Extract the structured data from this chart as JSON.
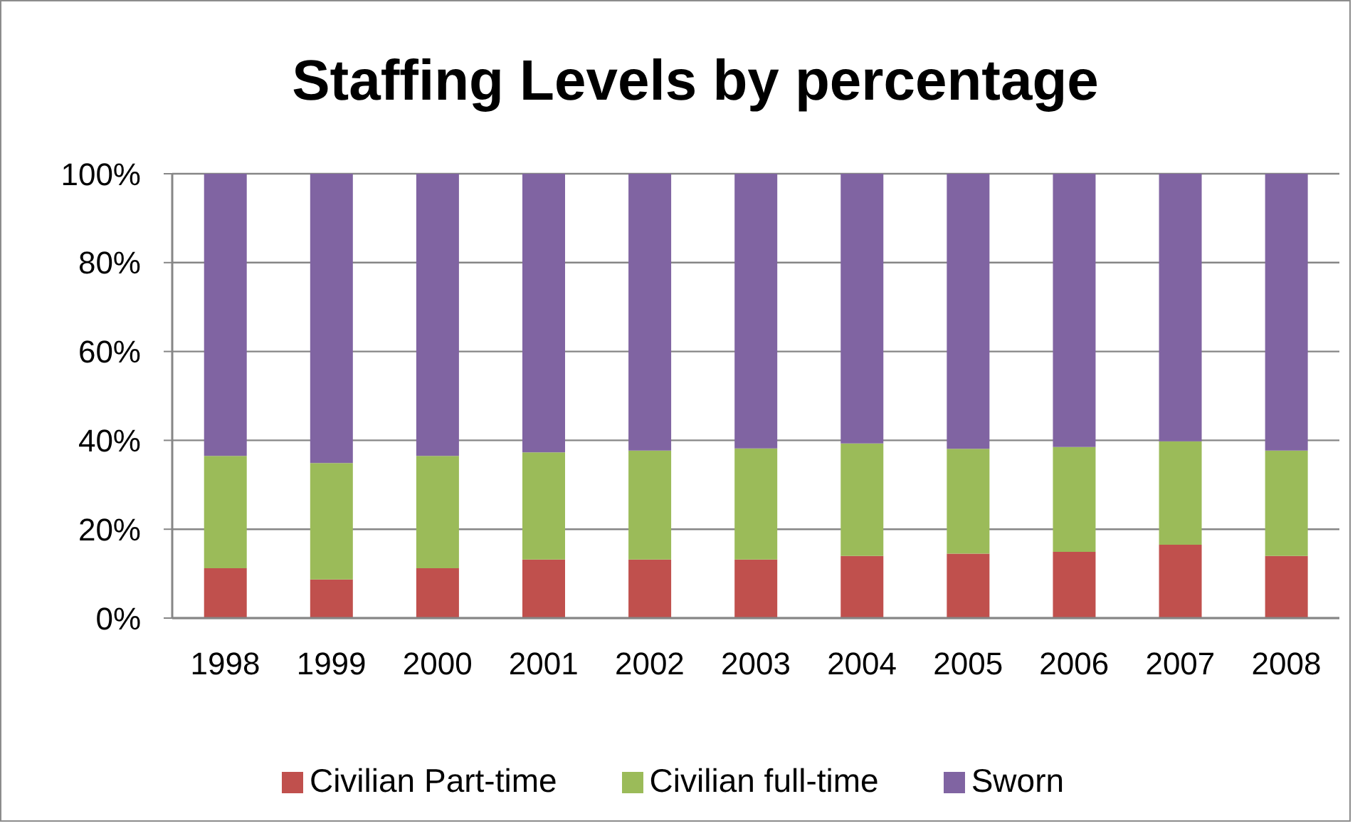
{
  "chart_data": {
    "type": "bar",
    "title": "Staffing Levels by percentage",
    "categories": [
      "1998",
      "1999",
      "2000",
      "2001",
      "2002",
      "2003",
      "2004",
      "2005",
      "2006",
      "2007",
      "2008"
    ],
    "stacked": true,
    "series": [
      {
        "name": "Civilian Part-time",
        "color": "#c0504d",
        "values": [
          11.2,
          8.7,
          11.2,
          13.2,
          13.2,
          13.2,
          14.0,
          14.5,
          14.9,
          16.5,
          14.0
        ]
      },
      {
        "name": "Civilian full-time",
        "color": "#9bbb59",
        "values": [
          25.3,
          26.2,
          25.3,
          24.1,
          24.5,
          25.0,
          25.3,
          23.6,
          23.6,
          23.3,
          23.7
        ]
      },
      {
        "name": "Sworn",
        "color": "#8064a2",
        "values": [
          63.5,
          65.1,
          63.5,
          62.7,
          62.3,
          61.8,
          60.7,
          61.9,
          61.5,
          60.2,
          62.3
        ]
      }
    ],
    "ylim": [
      0,
      100
    ],
    "yticks": [
      {
        "value": 0,
        "label": "0%"
      },
      {
        "value": 20,
        "label": "20%"
      },
      {
        "value": 40,
        "label": "40%"
      },
      {
        "value": 60,
        "label": "60%"
      },
      {
        "value": 80,
        "label": "80%"
      },
      {
        "value": 100,
        "label": "100%"
      }
    ],
    "grid": "y",
    "legend": "bottom"
  }
}
